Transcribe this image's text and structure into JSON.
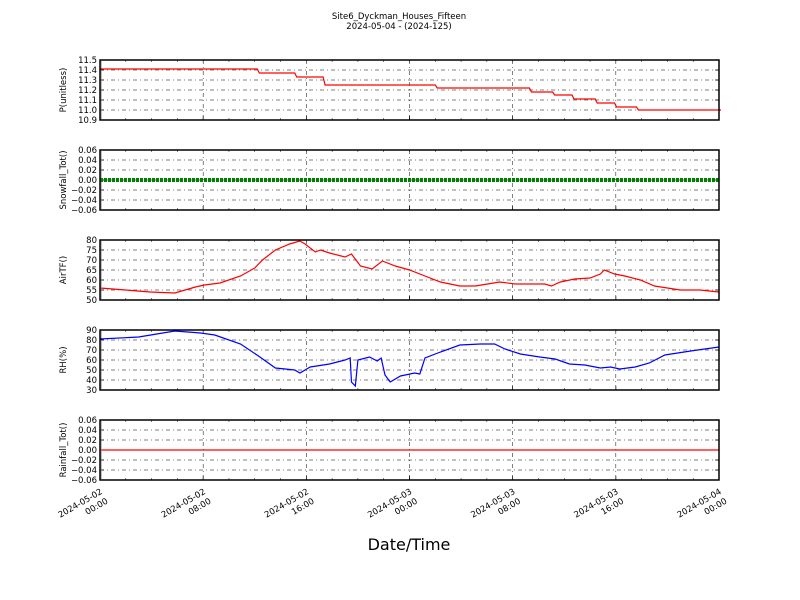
{
  "chart_data": {
    "type": "line",
    "title": "Site6_Dyckman_Houses_Fifteen",
    "subtitle": "2024-05-04 - (2024-125)",
    "xlabel": "Date/Time",
    "x_unit": "hours since 2024-05-02 00:00",
    "xlim": [
      0,
      48
    ],
    "x_ticks": [
      0,
      8,
      16,
      24,
      32,
      40,
      48
    ],
    "x_tick_labels": [
      [
        "2024-05-02",
        "00:00"
      ],
      [
        "2024-05-02",
        "08:00"
      ],
      [
        "2024-05-02",
        "16:00"
      ],
      [
        "2024-05-03",
        "00:00"
      ],
      [
        "2024-05-03",
        "08:00"
      ],
      [
        "2024-05-03",
        "16:00"
      ],
      [
        "2024-05-04",
        "00:00"
      ]
    ],
    "grid": true,
    "panels": [
      {
        "ylabel": "P(unitless)",
        "ylim": [
          10.9,
          11.5
        ],
        "color": "#ff0000",
        "style": "step",
        "y_ticks": [
          10.9,
          11.0,
          11.1,
          11.2,
          11.3,
          11.4,
          11.5
        ],
        "tick_decimals": 1,
        "x": [
          0,
          12.2,
          15.1,
          17.3,
          26.0,
          33.3,
          35.1,
          36.6,
          38.4,
          39.9,
          41.6,
          48
        ],
        "y": [
          11.41,
          11.37,
          11.33,
          11.25,
          11.22,
          11.18,
          11.15,
          11.11,
          11.07,
          11.03,
          11.0,
          11.0
        ]
      },
      {
        "ylabel": "Snowfall_Tot()",
        "ylim": [
          -0.06,
          0.06
        ],
        "color": "#008000",
        "style": "dots",
        "y_ticks": [
          -0.06,
          -0.04,
          -0.02,
          0.0,
          0.02,
          0.04,
          0.06
        ],
        "tick_decimals": 2,
        "x": [
          0,
          48
        ],
        "y": [
          0,
          0
        ]
      },
      {
        "ylabel": "AirTF()",
        "ylim": [
          50,
          80
        ],
        "color": "#ff0000",
        "style": "line",
        "y_ticks": [
          50,
          55,
          60,
          65,
          70,
          75,
          80
        ],
        "tick_decimals": 0,
        "x": [
          0,
          2,
          3.9,
          5.8,
          6.6,
          7.4,
          8.1,
          9.3,
          10.9,
          12,
          12.6,
          13.6,
          14.7,
          15.5,
          15.9,
          16.7,
          17.1,
          17.8,
          19,
          19.5,
          20.2,
          21.1,
          21.9,
          22.9,
          24,
          25.2,
          26.4,
          27.9,
          29.1,
          31,
          32.2,
          33.3,
          34.5,
          35,
          35.7,
          36.8,
          38,
          38.8,
          39.1,
          39.9,
          40.7,
          41.9,
          43,
          45,
          46.5,
          48
        ],
        "y": [
          56,
          55,
          54,
          53.5,
          55,
          56.5,
          57.5,
          58.5,
          62,
          66,
          70,
          75,
          78,
          79.5,
          78,
          74,
          75,
          73.5,
          71.5,
          73,
          67,
          65.5,
          69.5,
          67,
          65,
          62,
          59,
          57,
          57,
          59,
          58,
          58,
          58,
          57,
          59,
          60.5,
          61,
          63,
          65,
          63,
          62,
          60,
          57,
          55,
          55,
          54
        ]
      },
      {
        "ylabel": "RH(%)",
        "ylim": [
          30,
          90
        ],
        "color": "#0000ff",
        "style": "line",
        "y_ticks": [
          30,
          40,
          50,
          60,
          70,
          80,
          90
        ],
        "tick_decimals": 0,
        "x": [
          0,
          3,
          5.8,
          7.8,
          8.9,
          10.9,
          12.4,
          13.6,
          15.1,
          15.5,
          16.3,
          17.8,
          19,
          19.4,
          19.5,
          19.8,
          20,
          20.9,
          21.5,
          21.8,
          22.1,
          22.5,
          23.3,
          24.4,
          24.8,
          25.2,
          26.4,
          27.9,
          29.5,
          30.6,
          31.4,
          32.6,
          34.1,
          35.3,
          36.4,
          37.6,
          38.8,
          39.6,
          40.3,
          41.5,
          42.6,
          43.8,
          45.8,
          48
        ],
        "y": [
          81,
          83,
          89,
          87,
          85,
          76,
          63,
          52,
          50,
          47,
          53,
          56,
          60,
          62,
          38,
          34,
          60,
          63,
          59,
          62,
          45,
          38,
          44,
          47,
          46,
          62,
          68,
          75,
          76,
          76,
          71,
          66,
          63,
          61,
          56,
          55,
          52,
          53,
          51,
          53,
          57,
          65,
          69,
          73
        ]
      },
      {
        "ylabel": "Rainfall_Tot()",
        "ylim": [
          -0.06,
          0.06
        ],
        "color": "#ff0000",
        "style": "line",
        "y_ticks": [
          -0.06,
          -0.04,
          -0.02,
          0.0,
          0.02,
          0.04,
          0.06
        ],
        "tick_decimals": 2,
        "x": [
          0,
          48
        ],
        "y": [
          0,
          0
        ]
      }
    ]
  }
}
